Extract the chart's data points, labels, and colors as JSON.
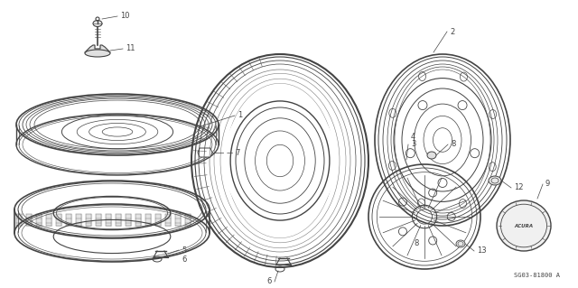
{
  "background_color": "#ffffff",
  "line_color": "#444444",
  "figure_width": 6.4,
  "figure_height": 3.19,
  "dpi": 100,
  "note_text": "SG03-81800 A"
}
